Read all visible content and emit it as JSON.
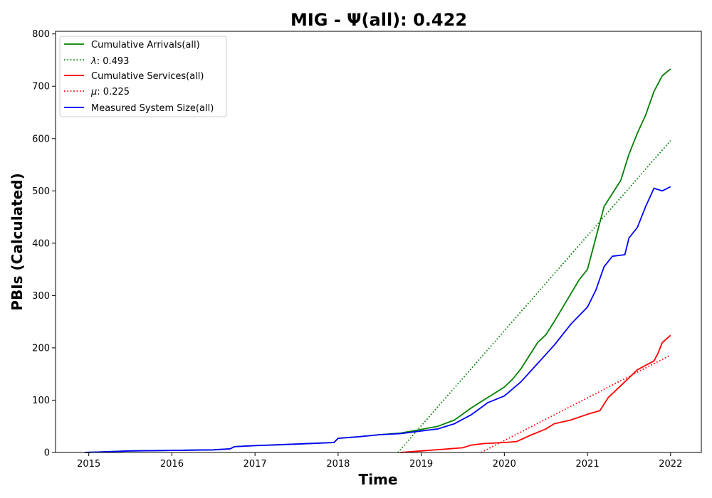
{
  "chart_data": {
    "type": "line",
    "title": "MIG -  Ψ(all): 0.422",
    "xlabel": "Time",
    "ylabel": "PBIs (Calculated)",
    "xlim": [
      2014.6,
      2022.37
    ],
    "ylim": [
      0,
      805
    ],
    "x_ticks": [
      2015,
      2016,
      2017,
      2018,
      2019,
      2020,
      2021,
      2022
    ],
    "x_tick_labels": [
      "2015",
      "2016",
      "2017",
      "2018",
      "2019",
      "2020",
      "2021",
      "2022"
    ],
    "y_ticks": [
      0,
      100,
      200,
      300,
      400,
      500,
      600,
      700,
      800
    ],
    "y_tick_labels": [
      "0",
      "100",
      "200",
      "300",
      "400",
      "500",
      "600",
      "700",
      "800"
    ],
    "grid": false,
    "legend_position": "top-left",
    "series": [
      {
        "name": "Cumulative Arrivals(all)",
        "color": "#008000",
        "style": "solid",
        "legend_label": "Cumulative Arrivals(all)",
        "x": [
          2014.95,
          2015.5,
          2016.0,
          2016.5,
          2016.7,
          2016.75,
          2017.0,
          2017.5,
          2017.95,
          2018.0,
          2018.25,
          2018.5,
          2018.75,
          2019.0,
          2019.2,
          2019.4,
          2019.6,
          2019.8,
          2020.0,
          2020.1,
          2020.2,
          2020.3,
          2020.4,
          2020.5,
          2020.6,
          2020.75,
          2020.9,
          2021.0,
          2021.1,
          2021.2,
          2021.3,
          2021.4,
          2021.5,
          2021.6,
          2021.7,
          2021.8,
          2021.9,
          2022.0
        ],
        "y": [
          0,
          3,
          4,
          5,
          7,
          11,
          13,
          16,
          19,
          27,
          30,
          34,
          37,
          44,
          50,
          62,
          85,
          105,
          125,
          140,
          160,
          185,
          210,
          225,
          250,
          290,
          330,
          350,
          410,
          470,
          495,
          520,
          570,
          610,
          645,
          690,
          720,
          733
        ]
      },
      {
        "name": "λ: 0.493",
        "color": "#008000",
        "style": "dotted",
        "legend_label_var": "λ",
        "legend_label_value": ": 0.493",
        "x": [
          2018.72,
          2022.0
        ],
        "y": [
          0,
          596
        ]
      },
      {
        "name": "Cumulative Services(all)",
        "color": "#ff0000",
        "style": "solid",
        "legend_label": "Cumulative Services(all)",
        "x": [
          2018.75,
          2019.0,
          2019.25,
          2019.5,
          2019.6,
          2019.75,
          2020.0,
          2020.15,
          2020.3,
          2020.5,
          2020.6,
          2020.8,
          2021.0,
          2021.15,
          2021.25,
          2021.45,
          2021.6,
          2021.8,
          2021.85,
          2021.9,
          2022.0
        ],
        "y": [
          0,
          3,
          6,
          9,
          14,
          17,
          19,
          21,
          32,
          45,
          55,
          62,
          73,
          80,
          105,
          135,
          158,
          175,
          190,
          210,
          224
        ]
      },
      {
        "name": "μ: 0.225",
        "color": "#ff0000",
        "style": "dotted",
        "legend_label_var": "μ",
        "legend_label_value": ": 0.225",
        "x": [
          2019.72,
          2022.0
        ],
        "y": [
          0,
          186
        ]
      },
      {
        "name": "Measured System Size(all)",
        "color": "#0000ff",
        "style": "solid",
        "legend_label": "Measured System Size(all)",
        "x": [
          2014.95,
          2015.5,
          2016.0,
          2016.5,
          2016.7,
          2016.75,
          2017.0,
          2017.5,
          2017.95,
          2018.0,
          2018.25,
          2018.5,
          2018.75,
          2019.0,
          2019.2,
          2019.4,
          2019.6,
          2019.8,
          2020.0,
          2020.2,
          2020.4,
          2020.6,
          2020.8,
          2021.0,
          2021.1,
          2021.2,
          2021.3,
          2021.45,
          2021.5,
          2021.6,
          2021.7,
          2021.8,
          2021.9,
          2022.0
        ],
        "y": [
          0,
          3,
          4,
          5,
          7,
          11,
          13,
          16,
          19,
          27,
          30,
          34,
          36,
          41,
          45,
          55,
          72,
          95,
          108,
          135,
          170,
          205,
          245,
          278,
          310,
          355,
          375,
          378,
          410,
          430,
          470,
          505,
          500,
          508
        ]
      }
    ]
  }
}
